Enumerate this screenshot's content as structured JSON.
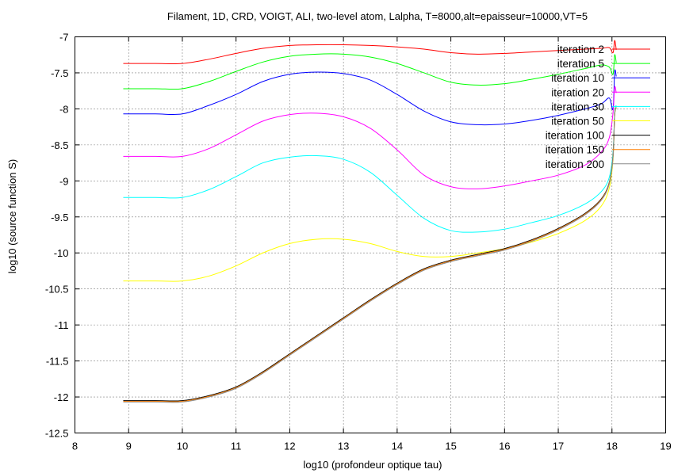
{
  "chart_data": {
    "type": "line",
    "title": "Filament, 1D, CRD, VOIGT, ALI, two-level atom, Lalpha, T=8000,alt=epaisseur=10000,VT=5",
    "xlabel": "log10 (profondeur optique tau)",
    "ylabel": "log10 (source function S)",
    "xlim": [
      8,
      19
    ],
    "ylim": [
      -12.5,
      -7
    ],
    "xticks": [
      "8",
      "9",
      "10",
      "11",
      "12",
      "13",
      "14",
      "15",
      "16",
      "17",
      "18",
      "19"
    ],
    "yticks": [
      "-7",
      "-7.5",
      "-8",
      "-8.5",
      "-9",
      "-9.5",
      "-10",
      "-10.5",
      "-11",
      "-11.5",
      "-12",
      "-12.5"
    ],
    "grid": true,
    "legend_position": "top-right",
    "series": [
      {
        "name": "iteration 2",
        "color": "#ff0000",
        "x": [
          8.9,
          9.5,
          10.0,
          10.5,
          11.0,
          11.5,
          12.0,
          12.5,
          13.0,
          13.5,
          14.0,
          14.5,
          15.0,
          15.5,
          16.0,
          16.5,
          17.0,
          17.5,
          17.8,
          17.95,
          18.02,
          18.05,
          18.08
        ],
        "y": [
          -7.37,
          -7.37,
          -7.37,
          -7.31,
          -7.23,
          -7.16,
          -7.12,
          -7.11,
          -7.11,
          -7.12,
          -7.14,
          -7.17,
          -7.22,
          -7.24,
          -7.23,
          -7.21,
          -7.19,
          -7.17,
          -7.16,
          -7.15,
          -7.22,
          -7.05,
          -7.18
        ]
      },
      {
        "name": "iteration 5",
        "color": "#00ff00",
        "x": [
          8.9,
          9.5,
          10.0,
          10.5,
          11.0,
          11.5,
          12.0,
          12.5,
          13.0,
          13.5,
          14.0,
          14.5,
          15.0,
          15.5,
          16.0,
          16.5,
          17.0,
          17.5,
          17.8,
          17.95,
          18.02,
          18.05,
          18.08
        ],
        "y": [
          -7.72,
          -7.72,
          -7.72,
          -7.62,
          -7.48,
          -7.35,
          -7.27,
          -7.24,
          -7.24,
          -7.28,
          -7.37,
          -7.5,
          -7.63,
          -7.67,
          -7.65,
          -7.59,
          -7.52,
          -7.44,
          -7.39,
          -7.42,
          -7.52,
          -7.25,
          -7.36
        ]
      },
      {
        "name": "iteration 10",
        "color": "#0000ff",
        "x": [
          8.9,
          9.5,
          10.0,
          10.5,
          11.0,
          11.5,
          12.0,
          12.5,
          13.0,
          13.5,
          14.0,
          14.5,
          15.0,
          15.5,
          16.0,
          16.5,
          17.0,
          17.5,
          17.8,
          17.95,
          18.02,
          18.05,
          18.08
        ],
        "y": [
          -8.07,
          -8.07,
          -8.07,
          -7.95,
          -7.8,
          -7.62,
          -7.52,
          -7.49,
          -7.51,
          -7.6,
          -7.8,
          -8.03,
          -8.18,
          -8.22,
          -8.21,
          -8.16,
          -8.09,
          -8.0,
          -7.93,
          -7.85,
          -8.0,
          -7.48,
          -7.55
        ]
      },
      {
        "name": "iteration 20",
        "color": "#ff00ff",
        "x": [
          8.9,
          9.5,
          10.0,
          10.5,
          11.0,
          11.5,
          12.0,
          12.5,
          13.0,
          13.5,
          14.0,
          14.5,
          15.0,
          15.5,
          16.0,
          16.5,
          17.0,
          17.5,
          17.8,
          17.95,
          18.02,
          18.05,
          18.08
        ],
        "y": [
          -8.66,
          -8.66,
          -8.66,
          -8.55,
          -8.36,
          -8.17,
          -8.08,
          -8.06,
          -8.11,
          -8.27,
          -8.57,
          -8.92,
          -9.08,
          -9.11,
          -9.07,
          -9.0,
          -8.92,
          -8.78,
          -8.6,
          -8.4,
          -8.05,
          -7.7,
          -7.78
        ]
      },
      {
        "name": "iteration 30",
        "color": "#00ffff",
        "x": [
          8.9,
          9.5,
          10.0,
          10.5,
          11.0,
          11.5,
          12.0,
          12.5,
          13.0,
          13.5,
          14.0,
          14.5,
          15.0,
          15.5,
          16.0,
          16.5,
          17.0,
          17.5,
          17.8,
          17.95,
          18.02,
          18.05,
          18.08
        ],
        "y": [
          -9.23,
          -9.23,
          -9.23,
          -9.12,
          -8.94,
          -8.75,
          -8.67,
          -8.65,
          -8.7,
          -8.88,
          -9.2,
          -9.52,
          -9.69,
          -9.71,
          -9.67,
          -9.58,
          -9.48,
          -9.32,
          -9.15,
          -8.95,
          -8.6,
          -8.05,
          -7.95
        ]
      },
      {
        "name": "iteration 50",
        "color": "#ffff00",
        "x": [
          8.9,
          9.5,
          10.0,
          10.5,
          11.0,
          11.5,
          12.0,
          12.5,
          13.0,
          13.5,
          14.0,
          14.5,
          15.0,
          15.5,
          16.0,
          16.5,
          17.0,
          17.5,
          17.8,
          17.95,
          18.02,
          18.05,
          18.08
        ],
        "y": [
          -10.39,
          -10.39,
          -10.39,
          -10.32,
          -10.18,
          -10.0,
          -9.87,
          -9.81,
          -9.81,
          -9.87,
          -9.98,
          -10.05,
          -10.05,
          -10.0,
          -9.94,
          -9.85,
          -9.73,
          -9.55,
          -9.35,
          -9.1,
          -8.7,
          -8.1,
          -7.98
        ]
      },
      {
        "name": "iteration 100",
        "color": "#000000",
        "x": [
          8.9,
          9.5,
          10.0,
          10.5,
          11.0,
          11.5,
          12.0,
          12.5,
          13.0,
          13.5,
          14.0,
          14.5,
          15.0,
          15.5,
          16.0,
          16.5,
          17.0,
          17.5,
          17.8,
          17.95,
          18.02,
          18.05,
          18.08
        ],
        "y": [
          -12.05,
          -12.05,
          -12.05,
          -11.98,
          -11.86,
          -11.65,
          -11.4,
          -11.15,
          -10.9,
          -10.65,
          -10.42,
          -10.22,
          -10.1,
          -10.02,
          -9.94,
          -9.82,
          -9.66,
          -9.45,
          -9.25,
          -9.02,
          -8.65,
          -8.08,
          -7.98
        ]
      },
      {
        "name": "iteration 150",
        "color": "#ff7f00",
        "x": [
          8.9,
          9.5,
          10.0,
          10.5,
          11.0,
          11.5,
          12.0,
          12.5,
          13.0,
          13.5,
          14.0,
          14.5,
          15.0,
          15.5,
          16.0,
          16.5,
          17.0,
          17.5,
          17.8,
          17.95,
          18.02,
          18.05,
          18.08
        ],
        "y": [
          -12.06,
          -12.06,
          -12.06,
          -11.99,
          -11.87,
          -11.66,
          -11.41,
          -11.16,
          -10.91,
          -10.66,
          -10.43,
          -10.23,
          -10.11,
          -10.03,
          -9.95,
          -9.83,
          -9.67,
          -9.46,
          -9.26,
          -9.03,
          -8.66,
          -8.08,
          -7.98
        ]
      },
      {
        "name": "iteration 200",
        "color": "#8a8a8a",
        "x": [
          8.9,
          9.5,
          10.0,
          10.5,
          11.0,
          11.5,
          12.0,
          12.5,
          13.0,
          13.5,
          14.0,
          14.5,
          15.0,
          15.5,
          16.0,
          16.5,
          17.0,
          17.5,
          17.8,
          17.95,
          18.02,
          18.05,
          18.08
        ],
        "y": [
          -12.07,
          -12.07,
          -12.07,
          -12.0,
          -11.88,
          -11.67,
          -11.42,
          -11.17,
          -10.92,
          -10.67,
          -10.44,
          -10.24,
          -10.12,
          -10.04,
          -9.96,
          -9.84,
          -9.68,
          -9.47,
          -9.27,
          -9.04,
          -8.67,
          -8.09,
          -7.99
        ]
      }
    ]
  }
}
